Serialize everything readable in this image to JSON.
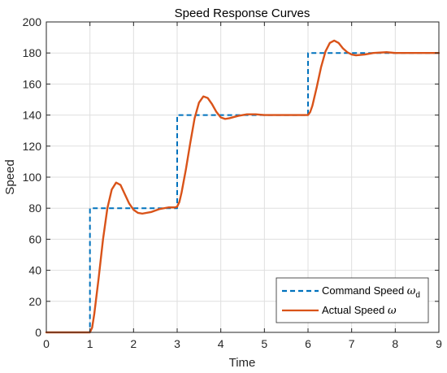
{
  "chart_data": {
    "type": "line",
    "title": "Speed Response Curves",
    "xlabel": "Time",
    "ylabel": "Speed",
    "xlim": [
      0,
      9
    ],
    "ylim": [
      0,
      200
    ],
    "xticks": [
      0,
      1,
      2,
      3,
      4,
      5,
      6,
      7,
      8,
      9
    ],
    "yticks": [
      0,
      20,
      40,
      60,
      80,
      100,
      120,
      140,
      160,
      180,
      200
    ],
    "grid": true,
    "legend_position": "bottom-right",
    "series": [
      {
        "name": "Command Speed",
        "name_symbol": "ω",
        "name_subscript": "d",
        "style": "dashed",
        "color": "#0072BD",
        "points": [
          [
            0,
            0
          ],
          [
            1,
            0
          ],
          [
            1,
            80
          ],
          [
            3,
            80
          ],
          [
            3,
            140
          ],
          [
            6,
            140
          ],
          [
            6,
            180
          ],
          [
            9,
            180
          ]
        ]
      },
      {
        "name": "Actual Speed",
        "name_symbol": "ω",
        "name_subscript": "",
        "style": "solid",
        "color": "#D95319",
        "points": [
          [
            0,
            0
          ],
          [
            1.0,
            0
          ],
          [
            1.05,
            3
          ],
          [
            1.1,
            12
          ],
          [
            1.2,
            35
          ],
          [
            1.3,
            60
          ],
          [
            1.4,
            80
          ],
          [
            1.5,
            92
          ],
          [
            1.6,
            96.5
          ],
          [
            1.7,
            95
          ],
          [
            1.8,
            89
          ],
          [
            1.9,
            83
          ],
          [
            2.0,
            79
          ],
          [
            2.1,
            77
          ],
          [
            2.2,
            76.5
          ],
          [
            2.4,
            77.5
          ],
          [
            2.6,
            79.5
          ],
          [
            2.8,
            80.5
          ],
          [
            2.95,
            80.5
          ],
          [
            3.0,
            81
          ],
          [
            3.05,
            84
          ],
          [
            3.1,
            90
          ],
          [
            3.2,
            105
          ],
          [
            3.3,
            122
          ],
          [
            3.4,
            138
          ],
          [
            3.5,
            148
          ],
          [
            3.6,
            152
          ],
          [
            3.7,
            151
          ],
          [
            3.8,
            147
          ],
          [
            3.9,
            142
          ],
          [
            4.0,
            138.5
          ],
          [
            4.1,
            137.5
          ],
          [
            4.2,
            138
          ],
          [
            4.4,
            139.5
          ],
          [
            4.6,
            140.5
          ],
          [
            4.8,
            140.5
          ],
          [
            5.0,
            140
          ],
          [
            5.5,
            140
          ],
          [
            6.0,
            140
          ],
          [
            6.05,
            142
          ],
          [
            6.1,
            146
          ],
          [
            6.2,
            158
          ],
          [
            6.3,
            171
          ],
          [
            6.4,
            181
          ],
          [
            6.5,
            186.5
          ],
          [
            6.6,
            188
          ],
          [
            6.7,
            186.5
          ],
          [
            6.8,
            183
          ],
          [
            6.9,
            180.5
          ],
          [
            7.0,
            179
          ],
          [
            7.1,
            178.5
          ],
          [
            7.3,
            179
          ],
          [
            7.5,
            180
          ],
          [
            7.8,
            180.5
          ],
          [
            8.0,
            180
          ],
          [
            9.0,
            180
          ]
        ]
      }
    ]
  }
}
